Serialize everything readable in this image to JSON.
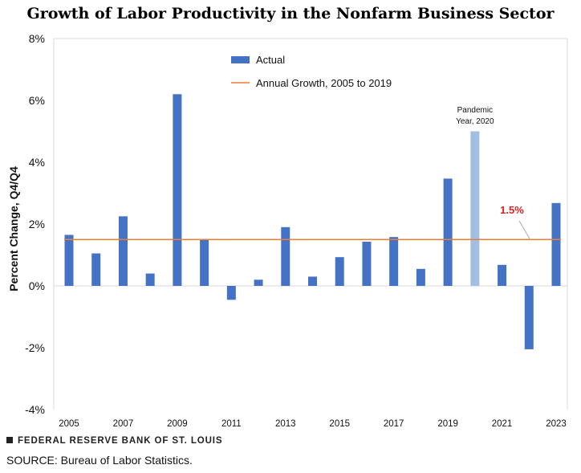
{
  "chart_data": {
    "type": "bar",
    "title": "Growth of Labor Productivity in the Nonfarm Business Sector",
    "ylabel": "Percent Change, Q4/Q4",
    "ylim": [
      -4,
      8
    ],
    "yticks": [
      -4,
      -2,
      0,
      2,
      4,
      6,
      8
    ],
    "ytick_labels": [
      "-4%",
      "-2%",
      "0%",
      "2%",
      "4%",
      "6%",
      "8%"
    ],
    "xtick_labels": [
      "2005",
      "2007",
      "2009",
      "2011",
      "2013",
      "2015",
      "2017",
      "2019",
      "2021",
      "2023"
    ],
    "categories": [
      "2005",
      "2006",
      "2007",
      "2008",
      "2009",
      "2010",
      "2011",
      "2012",
      "2013",
      "2014",
      "2015",
      "2016",
      "2017",
      "2018",
      "2019",
      "2020",
      "2021",
      "2022",
      "2023"
    ],
    "series": [
      {
        "name": "Actual",
        "color": "#4472C4",
        "highlight_color": "#A4BDE3",
        "highlight_category": "2020",
        "values": [
          1.65,
          1.05,
          2.25,
          0.4,
          6.2,
          1.5,
          -0.45,
          0.2,
          1.9,
          0.3,
          0.93,
          1.43,
          1.58,
          0.55,
          3.47,
          5.0,
          0.68,
          -2.05,
          2.68
        ]
      }
    ],
    "reference_line": {
      "name": "Annual Growth, 2005 to 2019",
      "value": 1.5,
      "color": "#ED7D31",
      "label": "1.5%",
      "label_color": "#E02020"
    },
    "annotations": [
      {
        "category": "2020",
        "lines": [
          "Pandemic",
          "Year, 2020"
        ]
      }
    ],
    "legend": {
      "placement": "top-center"
    },
    "grid": false
  },
  "footer": {
    "organization": "FEDERAL RESERVE BANK OF ST. LOUIS",
    "source": "SOURCE: Bureau of Labor Statistics."
  }
}
